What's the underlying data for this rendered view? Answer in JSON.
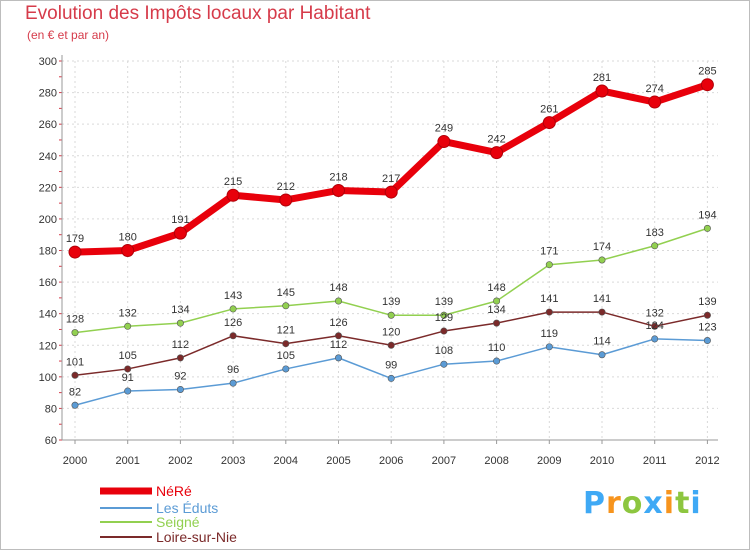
{
  "chart_data": {
    "type": "line",
    "title": "Evolution des Impôts locaux par Habitant",
    "subtitle": "(en € et par an)",
    "x": [
      "2000",
      "2001",
      "2002",
      "2003",
      "2004",
      "2005",
      "2006",
      "2007",
      "2008",
      "2009",
      "2010",
      "2011",
      "2012"
    ],
    "ylim": [
      60,
      300
    ],
    "yticks": [
      60,
      80,
      100,
      120,
      140,
      160,
      180,
      200,
      220,
      240,
      260,
      280,
      300
    ],
    "grid": true,
    "series": [
      {
        "name": "NéRé",
        "color": "#e8000b",
        "values": [
          179,
          180,
          191,
          215,
          212,
          218,
          217,
          249,
          242,
          261,
          281,
          274,
          285
        ]
      },
      {
        "name": "Les Éduts",
        "color": "#5b9bd5",
        "values": [
          82,
          91,
          92,
          96,
          105,
          112,
          99,
          108,
          110,
          119,
          114,
          124,
          123
        ]
      },
      {
        "name": "Seigné",
        "color": "#92d050",
        "values": [
          128,
          132,
          134,
          143,
          145,
          148,
          139,
          139,
          148,
          171,
          174,
          183,
          194
        ]
      },
      {
        "name": "Loire-sur-Nie",
        "color": "#7b2a2a",
        "values": [
          101,
          105,
          112,
          126,
          121,
          126,
          120,
          129,
          134,
          141,
          141,
          132,
          139
        ]
      }
    ]
  },
  "logo": {
    "text": "Proxiti",
    "letters": [
      "P",
      "r",
      "o",
      "x",
      "i",
      "t",
      "i"
    ],
    "colors": [
      "#3fa9f5",
      "#f7941d",
      "#8dc63f",
      "#3fa9f5",
      "#f7941d",
      "#8dc63f",
      "#3fa9f5"
    ]
  }
}
